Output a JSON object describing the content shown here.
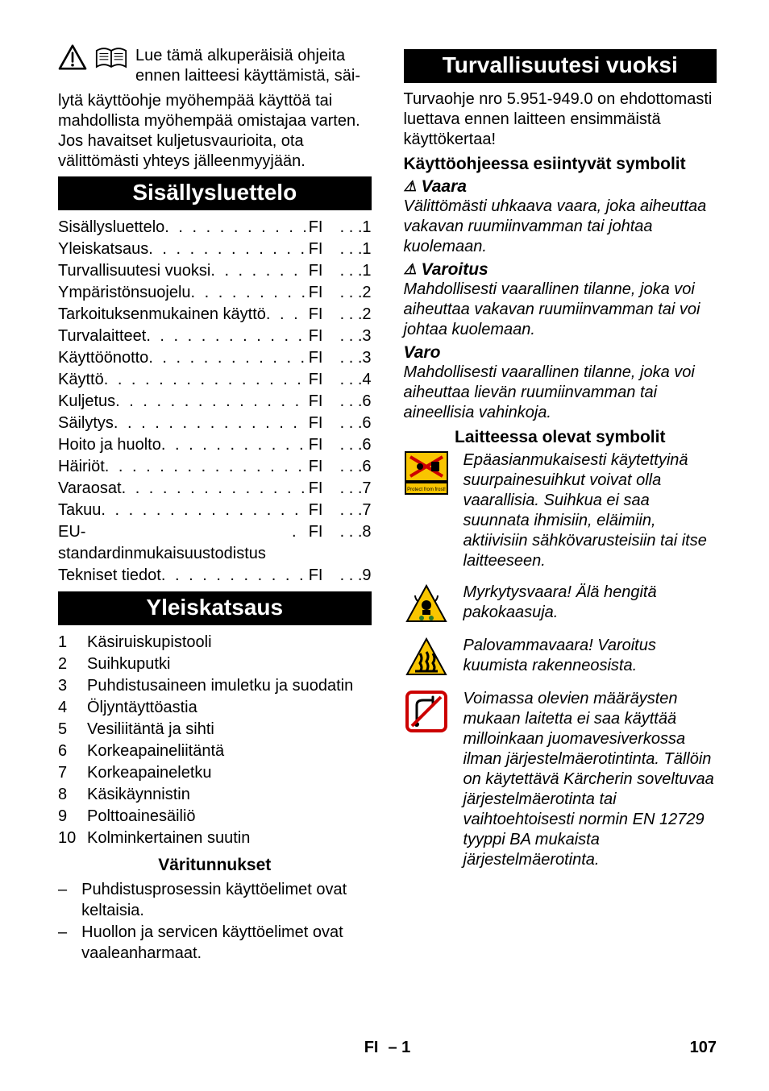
{
  "intro": {
    "line1": "Lue tämä alkuperäisiä ohjeita",
    "line2": "ennen laitteesi käyttämistä, säi-",
    "cont": "lytä käyttöohje myöhempää käyttöä tai mahdollista myöhempää omistajaa varten. Jos havaitset kuljetusvaurioita, ota välittömästi yhteys jälleenmyyjään."
  },
  "headings": {
    "toc": "Sisällysluettelo",
    "overview": "Yleiskatsaus",
    "colors": "Väritunnukset",
    "safety": "Turvallisuutesi vuoksi",
    "symbols_manual": "Käyttöohjeessa esiintyvät symbolit",
    "symbols_device": "Laitteessa olevat symbolit"
  },
  "toc": [
    {
      "label": "Sisällysluettelo",
      "code": "FI",
      "page": "1"
    },
    {
      "label": "Yleiskatsaus",
      "code": "FI",
      "page": "1"
    },
    {
      "label": "Turvallisuutesi vuoksi",
      "code": "FI",
      "page": "1"
    },
    {
      "label": "Ympäristönsuojelu",
      "code": "FI",
      "page": "2"
    },
    {
      "label": "Tarkoituksenmukainen käyttö",
      "code": "FI",
      "page": "2"
    },
    {
      "label": "Turvalaitteet",
      "code": "FI",
      "page": "3"
    },
    {
      "label": "Käyttöönotto",
      "code": "FI",
      "page": "3"
    },
    {
      "label": "Käyttö",
      "code": "FI",
      "page": "4"
    },
    {
      "label": "Kuljetus",
      "code": "FI",
      "page": "6"
    },
    {
      "label": "Säilytys",
      "code": "FI",
      "page": "6"
    },
    {
      "label": "Hoito ja huolto",
      "code": "FI",
      "page": "6"
    },
    {
      "label": "Häiriöt",
      "code": "FI",
      "page": "6"
    },
    {
      "label": "Varaosat",
      "code": "FI",
      "page": "7"
    },
    {
      "label": "Takuu",
      "code": "FI",
      "page": "7"
    },
    {
      "label": "EU-standardinmukaisuustodistus",
      "code": "FI",
      "page": "8"
    },
    {
      "label": "Tekniset tiedot",
      "code": "FI",
      "page": "9"
    }
  ],
  "overview_items": [
    "Käsiruiskupistooli",
    "Suihkuputki",
    "Puhdistusaineen imuletku ja suodatin",
    "Öljyntäyttöastia",
    "Vesiliitäntä ja sihti",
    "Korkeapaineliitäntä",
    "Korkeapaineletku",
    "Käsikäynnistin",
    "Polttoainesäiliö",
    "Kolminkertainen suutin"
  ],
  "color_codes": [
    "Puhdistusprosessin käyttöelimet ovat keltaisia.",
    "Huollon ja servicen käyttöelimet ovat vaaleanharmaat."
  ],
  "safety_intro": "Turvaohje nro 5.951-949.0 on ehdottomasti luettava ennen laitteen ensimmäistä käyttökertaa!",
  "danger": {
    "title": "Vaara",
    "text": "Välittömästi uhkaava vaara, joka aiheuttaa vakavan ruumiinvamman tai johtaa kuolemaan."
  },
  "warning": {
    "title": "Varoitus",
    "text": "Mahdollisesti vaarallinen tilanne, joka voi aiheuttaa vakavan ruumiinvamman tai voi johtaa kuolemaan."
  },
  "caution": {
    "title": "Varo",
    "text": "Mahdollisesti vaarallinen tilanne, joka voi aiheuttaa lievän ruumiinvamman tai aineellisia vahinkoja."
  },
  "device_symbols": [
    {
      "icon": "spray",
      "text": "Epäasianmukaisesti käytettyinä suurpainesuihkut voivat olla vaarallisia. Suihkua ei saa suunnata ihmisiin, eläimiin, aktiivisiin sähkövarusteisiin tai itse laitteeseen."
    },
    {
      "icon": "poison",
      "text": "Myrkytysvaara! Älä hengitä pakokaasuja."
    },
    {
      "icon": "hot",
      "text": "Palovammavaara! Varoitus kuumista rakenneosista."
    },
    {
      "icon": "nowater",
      "text": "Voimassa olevien määräysten mukaan laitetta ei saa käyttää milloinkaan juomavesiverkossa ilman järjestelmäerotintinta. Tällöin on käytettävä Kärcherin soveltuvaa järjestelmäerotinta tai vaihtoehtoisesti normin EN 12729 tyyppi BA mukaista järjestelmäerotinta."
    }
  ],
  "footer": {
    "lang": "FI",
    "sep": "– 1",
    "page": "107"
  },
  "colors": {
    "black": "#000000",
    "white": "#ffffff",
    "yellow": "#f9c500",
    "red": "#cc0000",
    "green": "#2a7a2a"
  }
}
